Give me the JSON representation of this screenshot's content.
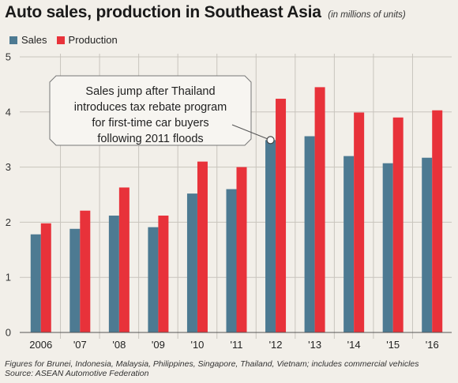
{
  "header": {
    "title": "Auto sales, production in Southeast Asia",
    "subtitle": "(in millions of units)"
  },
  "footnote": {
    "note": "Figures for Brunei, Indonesia, Malaysia, Philippines, Singapore, Thailand, Vietnam; includes commercial vehicles",
    "source": "Source: ASEAN Automotive Federation"
  },
  "colors": {
    "sales": "#4d7a92",
    "production": "#e8323a",
    "grid": "#c8c4bd",
    "background": "#f2efe9"
  },
  "chart_data": {
    "type": "bar",
    "title": "Auto sales, production in Southeast Asia",
    "subtitle": "(in millions of units)",
    "categories": [
      "2006",
      "'07",
      "'08",
      "'09",
      "'10",
      "'11",
      "'12",
      "'13",
      "'14",
      "'15",
      "'16"
    ],
    "series": [
      {
        "name": "Sales",
        "values": [
          1.78,
          1.88,
          2.12,
          1.91,
          2.52,
          2.6,
          3.49,
          3.56,
          3.2,
          3.07,
          3.17
        ]
      },
      {
        "name": "Production",
        "values": [
          1.98,
          2.21,
          2.63,
          2.12,
          3.1,
          3.0,
          4.24,
          4.45,
          3.99,
          3.9,
          4.03
        ]
      }
    ],
    "ylim": [
      0,
      5
    ],
    "yticks": [
      "0",
      "1",
      "2",
      "3",
      "4",
      "5"
    ],
    "grid": true,
    "legend": "top-left",
    "annotation": {
      "text": [
        "Sales jump after Thailand",
        "introduces tax rebate program",
        "for first-time car buyers",
        "following 2011 floods"
      ],
      "category": "'12",
      "series": "Sales"
    }
  }
}
